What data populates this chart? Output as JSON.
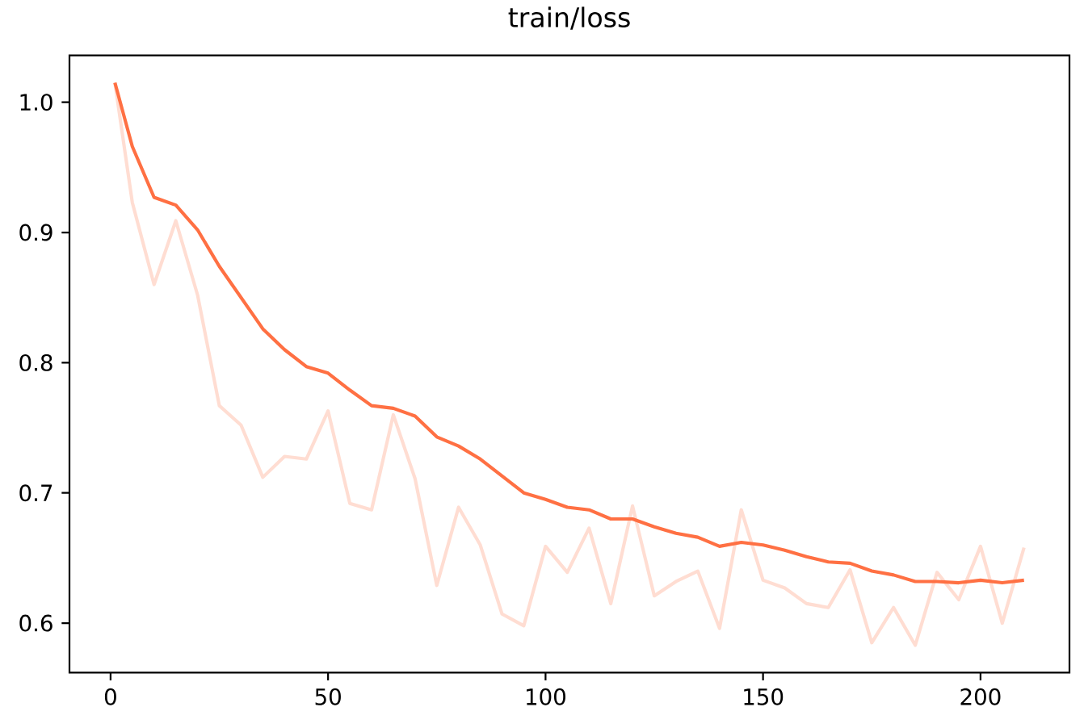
{
  "chart_data": {
    "type": "line",
    "title": "train/loss",
    "x": [
      1,
      5,
      10,
      15,
      20,
      25,
      30,
      35,
      40,
      45,
      50,
      55,
      60,
      65,
      70,
      75,
      80,
      85,
      90,
      95,
      100,
      105,
      110,
      115,
      120,
      125,
      130,
      135,
      140,
      145,
      150,
      155,
      160,
      165,
      170,
      175,
      180,
      185,
      190,
      195,
      200,
      205,
      210
    ],
    "series": [
      {
        "color": "#ffddd2",
        "values": [
          1.015,
          0.923,
          0.86,
          0.909,
          0.852,
          0.767,
          0.752,
          0.712,
          0.728,
          0.726,
          0.763,
          0.692,
          0.687,
          0.76,
          0.711,
          0.629,
          0.689,
          0.66,
          0.607,
          0.598,
          0.659,
          0.639,
          0.673,
          0.615,
          0.69,
          0.621,
          0.632,
          0.64,
          0.596,
          0.687,
          0.633,
          0.627,
          0.615,
          0.612,
          0.641,
          0.585,
          0.612,
          0.583,
          0.639,
          0.618,
          0.659,
          0.6,
          0.658
        ]
      },
      {
        "color": "#ff7043",
        "values": [
          1.015,
          0.966,
          0.927,
          0.921,
          0.902,
          0.874,
          0.85,
          0.826,
          0.81,
          0.797,
          0.792,
          0.779,
          0.767,
          0.765,
          0.759,
          0.743,
          0.736,
          0.726,
          0.713,
          0.7,
          0.695,
          0.689,
          0.687,
          0.68,
          0.68,
          0.674,
          0.669,
          0.666,
          0.659,
          0.662,
          0.66,
          0.656,
          0.651,
          0.647,
          0.646,
          0.64,
          0.637,
          0.632,
          0.632,
          0.631,
          0.633,
          0.631,
          0.633
        ]
      }
    ],
    "xlim": [
      -9.45,
      220.45
    ],
    "ylim": [
      0.562,
      1.036
    ],
    "xticks": [
      0,
      50,
      100,
      150,
      200
    ],
    "yticks": [
      0.6,
      0.7,
      0.8,
      0.9,
      {
        "value": 1.0,
        "label": "1.0"
      }
    ]
  }
}
